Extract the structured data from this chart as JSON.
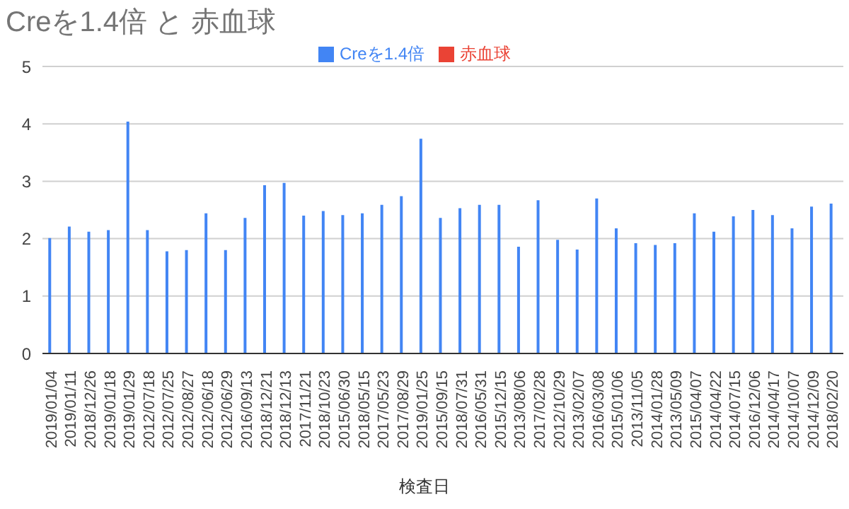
{
  "chart_data": {
    "type": "bar",
    "title": "Creを1.4倍 と 赤血球",
    "xlabel": "検査日",
    "categories": [
      "2019/01/04",
      "2019/01/11",
      "2018/12/26",
      "2019/01/18",
      "2019/01/29",
      "2012/07/18",
      "2012/07/25",
      "2012/08/27",
      "2012/06/18",
      "2012/06/29",
      "2016/09/13",
      "2018/12/21",
      "2018/12/13",
      "2017/11/21",
      "2018/10/23",
      "2015/06/30",
      "2018/05/15",
      "2017/05/23",
      "2017/08/29",
      "2019/01/25",
      "2015/09/15",
      "2018/07/31",
      "2016/05/31",
      "2015/12/15",
      "2013/08/06",
      "2017/02/28",
      "2012/10/29",
      "2013/02/07",
      "2016/03/08",
      "2015/01/06",
      "2013/11/05",
      "2014/01/28",
      "2013/05/09",
      "2015/04/07",
      "2014/04/22",
      "2014/07/15",
      "2016/12/06",
      "2014/04/17",
      "2014/10/07",
      "2014/12/09",
      "2018/02/20"
    ],
    "series": [
      {
        "name": "Creを1.4倍",
        "color": "#4285f4",
        "values": [
          2.01,
          2.21,
          2.12,
          2.15,
          4.04,
          2.15,
          1.78,
          1.8,
          2.44,
          1.8,
          2.36,
          2.93,
          2.97,
          2.4,
          2.48,
          2.41,
          2.44,
          2.59,
          2.74,
          3.74,
          2.36,
          2.53,
          2.59,
          2.59,
          1.86,
          2.67,
          1.98,
          1.81,
          2.7,
          2.18,
          1.92,
          1.89,
          1.92,
          2.44,
          2.12,
          2.39,
          2.5,
          2.41,
          2.18,
          2.56,
          2.61
        ]
      },
      {
        "name": "赤血球",
        "color": "#ea4335",
        "values": [
          0,
          0,
          0,
          0,
          0,
          0,
          0,
          0,
          0,
          0,
          0,
          0,
          0,
          0,
          0,
          0,
          0,
          0,
          0,
          0,
          0,
          0,
          0,
          0,
          0,
          0,
          0,
          0,
          0,
          0,
          0,
          0,
          0,
          0,
          0,
          0,
          0,
          0,
          0,
          0,
          0
        ]
      }
    ],
    "ylim": [
      0,
      5
    ],
    "yticks": [
      0,
      1,
      2,
      3,
      4,
      5
    ],
    "grid": "y",
    "legend": "top"
  }
}
